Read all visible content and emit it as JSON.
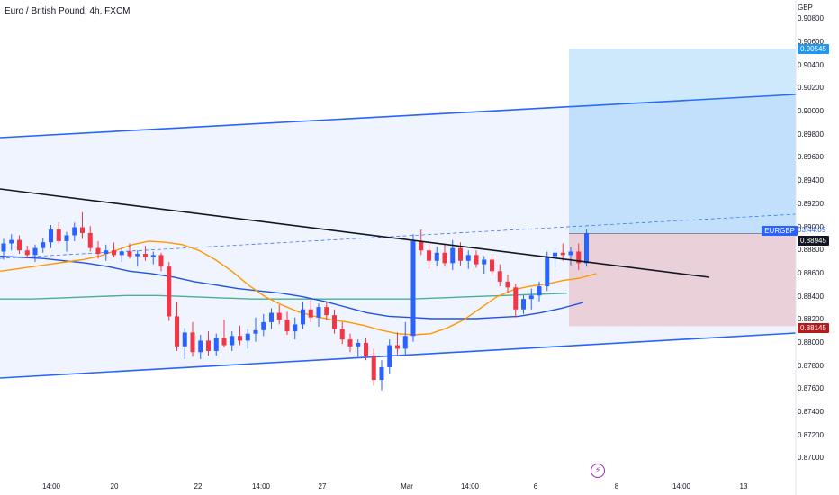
{
  "header": {
    "title": "Euro / British Pound, 4h, FXCM"
  },
  "price_axis": {
    "currency": "GBP",
    "ticks": [
      "0.90800",
      "0.90600",
      "0.90400",
      "0.90200",
      "0.90000",
      "0.89800",
      "0.89600",
      "0.89400",
      "0.89200",
      "0.89000",
      "0.88800",
      "0.88600",
      "0.88400",
      "0.88200",
      "0.88000",
      "0.87800",
      "0.87600",
      "0.87400",
      "0.87200",
      "0.87000"
    ],
    "target_price": "0.90545",
    "symbol": "EURGBP",
    "countdown": "03:44:09",
    "last_price": "0.88945",
    "stop_price": "0.88145",
    "colors": {
      "target_badge": "#2196f3",
      "last_badge": "#131722",
      "stop_badge": "#b71c1c"
    }
  },
  "time_axis": {
    "labels": [
      "14:00",
      "20",
      "22",
      "14:00",
      "27",
      "Mar",
      "14:00",
      "6",
      "8",
      "14:00",
      "13"
    ]
  },
  "icons": {
    "event_marker": "lightning-icon"
  },
  "chart_data": {
    "type": "candlestick",
    "symbol": "EURGBP",
    "timeframe": "4h",
    "ylim": [
      0.8698,
      0.9081
    ],
    "candles": [
      [
        0.8879,
        0.889,
        0.8872,
        0.8886
      ],
      [
        0.8886,
        0.8894,
        0.888,
        0.8889
      ],
      [
        0.8889,
        0.8893,
        0.8877,
        0.888
      ],
      [
        0.888,
        0.8884,
        0.8873,
        0.8876
      ],
      [
        0.8876,
        0.8885,
        0.887,
        0.8882
      ],
      [
        0.8882,
        0.8891,
        0.8878,
        0.8887
      ],
      [
        0.8887,
        0.8902,
        0.8882,
        0.8898
      ],
      [
        0.8898,
        0.8904,
        0.8886,
        0.8888
      ],
      [
        0.8888,
        0.8896,
        0.8879,
        0.8893
      ],
      [
        0.8893,
        0.8904,
        0.8888,
        0.89
      ],
      [
        0.89,
        0.8913,
        0.889,
        0.8895
      ],
      [
        0.8895,
        0.8901,
        0.8879,
        0.8882
      ],
      [
        0.8882,
        0.8888,
        0.8873,
        0.8877
      ],
      [
        0.8877,
        0.8885,
        0.8871,
        0.888
      ],
      [
        0.888,
        0.8887,
        0.8874,
        0.8876
      ],
      [
        0.8876,
        0.8882,
        0.887,
        0.8879
      ],
      [
        0.8879,
        0.8886,
        0.8873,
        0.8875
      ],
      [
        0.8875,
        0.888,
        0.8866,
        0.8877
      ],
      [
        0.8877,
        0.8884,
        0.8871,
        0.8874
      ],
      [
        0.8874,
        0.8879,
        0.8868,
        0.8876
      ],
      [
        0.8876,
        0.8878,
        0.8862,
        0.8866
      ],
      [
        0.8866,
        0.887,
        0.8819,
        0.8823
      ],
      [
        0.8823,
        0.8835,
        0.8793,
        0.8797
      ],
      [
        0.8797,
        0.8813,
        0.8786,
        0.8809
      ],
      [
        0.8809,
        0.8818,
        0.8788,
        0.8792
      ],
      [
        0.8792,
        0.8807,
        0.8786,
        0.8802
      ],
      [
        0.8802,
        0.881,
        0.8789,
        0.8793
      ],
      [
        0.8793,
        0.8808,
        0.8789,
        0.8804
      ],
      [
        0.8804,
        0.882,
        0.8796,
        0.8798
      ],
      [
        0.8798,
        0.881,
        0.8793,
        0.8806
      ],
      [
        0.8806,
        0.8815,
        0.8798,
        0.8802
      ],
      [
        0.8802,
        0.8812,
        0.8795,
        0.8808
      ],
      [
        0.8808,
        0.8822,
        0.8801,
        0.8811
      ],
      [
        0.8811,
        0.8825,
        0.8806,
        0.8818
      ],
      [
        0.8818,
        0.883,
        0.8812,
        0.8826
      ],
      [
        0.8826,
        0.8833,
        0.8816,
        0.882
      ],
      [
        0.882,
        0.8827,
        0.8807,
        0.881
      ],
      [
        0.881,
        0.8822,
        0.8803,
        0.8816
      ],
      [
        0.8816,
        0.8835,
        0.8812,
        0.8829
      ],
      [
        0.8829,
        0.8837,
        0.8818,
        0.8822
      ],
      [
        0.8822,
        0.8834,
        0.8814,
        0.8831
      ],
      [
        0.8831,
        0.8836,
        0.882,
        0.8824
      ],
      [
        0.8824,
        0.8829,
        0.8808,
        0.8812
      ],
      [
        0.8812,
        0.8818,
        0.8799,
        0.8803
      ],
      [
        0.8803,
        0.8808,
        0.8792,
        0.8797
      ],
      [
        0.8797,
        0.8803,
        0.8788,
        0.88
      ],
      [
        0.88,
        0.8804,
        0.8785,
        0.8789
      ],
      [
        0.8789,
        0.8795,
        0.8763,
        0.8768
      ],
      [
        0.8768,
        0.8785,
        0.8759,
        0.8779
      ],
      [
        0.8779,
        0.8803,
        0.8773,
        0.8798
      ],
      [
        0.8798,
        0.8809,
        0.879,
        0.8795
      ],
      [
        0.8795,
        0.8818,
        0.879,
        0.8806
      ],
      [
        0.8806,
        0.8894,
        0.8801,
        0.8888
      ],
      [
        0.8888,
        0.8898,
        0.8876,
        0.888
      ],
      [
        0.888,
        0.8886,
        0.8864,
        0.8871
      ],
      [
        0.8871,
        0.8883,
        0.8866,
        0.8878
      ],
      [
        0.8878,
        0.8885,
        0.8866,
        0.8869
      ],
      [
        0.8869,
        0.8889,
        0.8863,
        0.8882
      ],
      [
        0.8882,
        0.8887,
        0.8867,
        0.8871
      ],
      [
        0.8871,
        0.888,
        0.8864,
        0.8876
      ],
      [
        0.8876,
        0.888,
        0.8865,
        0.8868
      ],
      [
        0.8868,
        0.8875,
        0.886,
        0.8872
      ],
      [
        0.8872,
        0.8877,
        0.8858,
        0.8862
      ],
      [
        0.8862,
        0.8868,
        0.8849,
        0.8853
      ],
      [
        0.8853,
        0.8859,
        0.8843,
        0.8848
      ],
      [
        0.8848,
        0.8851,
        0.8822,
        0.8829
      ],
      [
        0.8829,
        0.8841,
        0.8825,
        0.8838
      ],
      [
        0.8838,
        0.8847,
        0.8829,
        0.8841
      ],
      [
        0.8841,
        0.8853,
        0.8836,
        0.8849
      ],
      [
        0.8849,
        0.8879,
        0.8845,
        0.8875
      ],
      [
        0.8875,
        0.8882,
        0.8866,
        0.8878
      ],
      [
        0.8878,
        0.8886,
        0.8871,
        0.8876
      ],
      [
        0.8876,
        0.8883,
        0.8867,
        0.8879
      ],
      [
        0.8879,
        0.8886,
        0.8863,
        0.8869
      ],
      [
        0.8869,
        0.8898,
        0.8866,
        0.8895
      ]
    ],
    "indicators": {
      "ma_orange": [
        0.8862,
        0.8864,
        0.8866,
        0.8868,
        0.887,
        0.8872,
        0.8875,
        0.888,
        0.8885,
        0.8888,
        0.8887,
        0.8885,
        0.888,
        0.8872,
        0.8862,
        0.885,
        0.884,
        0.8833,
        0.8827,
        0.8823,
        0.882,
        0.8818,
        0.8815,
        0.8811,
        0.8808,
        0.8807,
        0.8808,
        0.8813,
        0.882,
        0.883,
        0.884,
        0.8846,
        0.8849,
        0.8851,
        0.8854,
        0.8856,
        0.886
      ],
      "ma_blue": [
        0.8875,
        0.8874,
        0.8873,
        0.8871,
        0.8869,
        0.8866,
        0.8862,
        0.886,
        0.8857,
        0.8853,
        0.885,
        0.8847,
        0.8845,
        0.8843,
        0.884,
        0.8836,
        0.8831,
        0.8826,
        0.8823,
        0.8822,
        0.8821,
        0.8821,
        0.8821,
        0.8822,
        0.8823,
        0.8826,
        0.883,
        0.8835
      ],
      "ma_green": [
        0.8838,
        0.8838,
        0.8839,
        0.884,
        0.8841,
        0.8841,
        0.884,
        0.8839,
        0.8838,
        0.8838,
        0.8838,
        0.8838,
        0.8838,
        0.8838,
        0.8839,
        0.884,
        0.8841,
        0.8842,
        0.8843
      ]
    }
  }
}
